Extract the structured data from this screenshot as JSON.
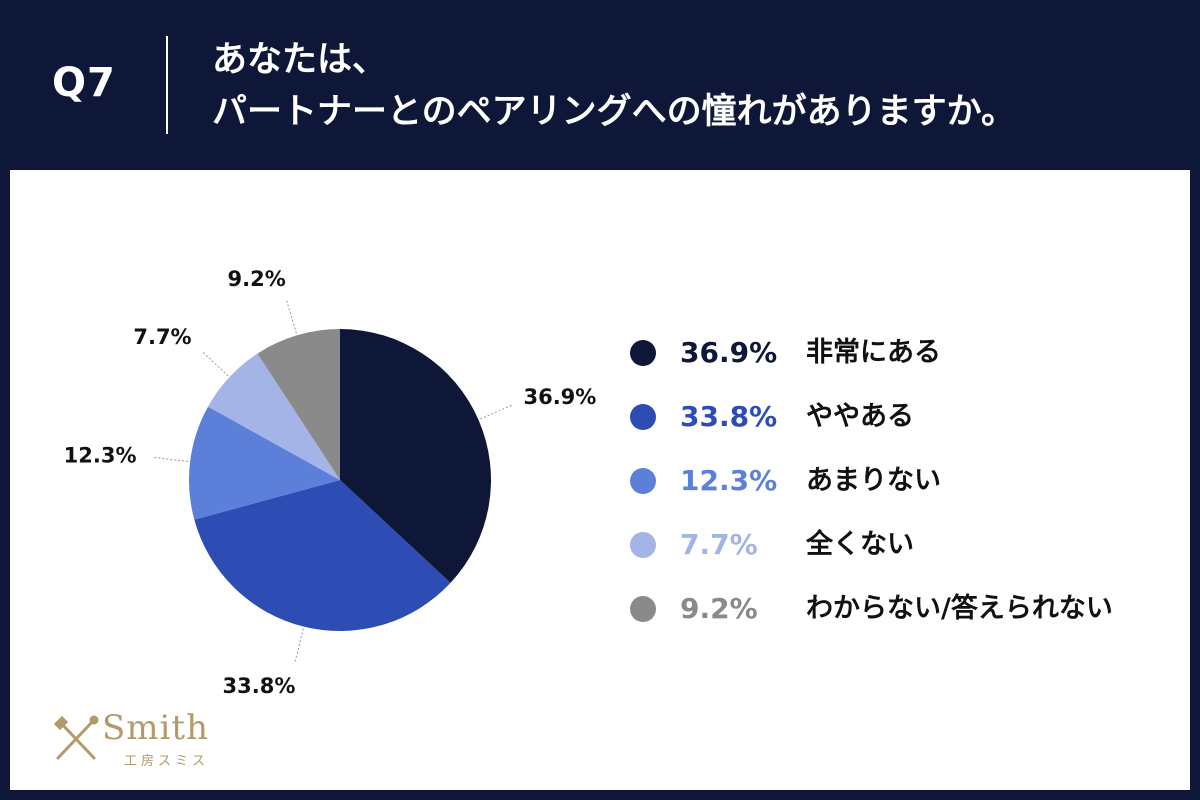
{
  "header": {
    "q_label": "Q7",
    "title_line1": "あなたは、",
    "title_line2": "パートナーとのペアリングへの憧れがありますか。"
  },
  "chart_data": {
    "type": "pie",
    "title": "",
    "slices": [
      {
        "label": "非常にある",
        "value": 36.9,
        "display": "36.9%",
        "color": "#0e1737"
      },
      {
        "label": "ややある",
        "value": 33.8,
        "display": "33.8%",
        "color": "#2e4db4"
      },
      {
        "label": "あまりない",
        "value": 12.3,
        "display": "12.3%",
        "color": "#5c7fd9"
      },
      {
        "label": "全くない",
        "value": 7.7,
        "display": "7.7%",
        "color": "#a5b4e6"
      },
      {
        "label": "わからない/答えられない",
        "value": 9.2,
        "display": "9.2%",
        "color": "#8a8a8a"
      }
    ],
    "start": "12 o'clock, clockwise",
    "legend_position": "right"
  },
  "logo": {
    "name": "Smith",
    "sub": "工房スミス",
    "icon": "crossed-tools-icon",
    "color": "#b29a6a"
  },
  "colors": {
    "background": "#0e1737",
    "panel": "#ffffff"
  }
}
